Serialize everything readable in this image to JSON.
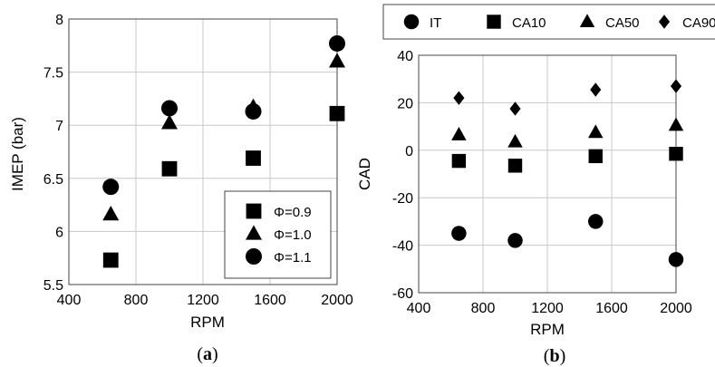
{
  "chart_data": [
    {
      "type": "scatter",
      "xlabel": "RPM",
      "ylabel": "IMEP (bar)",
      "xlim": [
        400,
        2000
      ],
      "ylim": [
        5.5,
        8
      ],
      "xticks": [
        "400",
        "800",
        "1200",
        "1600",
        "2000"
      ],
      "yticks": [
        "5.5",
        "6",
        "6.5",
        "7",
        "7.5",
        "8"
      ],
      "grid": true,
      "legend_position": "bottom-right",
      "caption": [
        "(",
        "a",
        ")"
      ],
      "series": [
        {
          "name": "Φ=0.9",
          "marker": "square",
          "x": [
            650,
            1000,
            1500,
            2000
          ],
          "y": [
            5.73,
            6.59,
            6.69,
            7.11
          ]
        },
        {
          "name": "Φ=1.0",
          "marker": "triangle",
          "x": [
            650,
            1000,
            1500,
            2000
          ],
          "y": [
            6.16,
            7.02,
            7.17,
            7.6
          ]
        },
        {
          "name": "Φ=1.1",
          "marker": "circle",
          "x": [
            650,
            1000,
            1500,
            2000
          ],
          "y": [
            6.42,
            7.16,
            7.13,
            7.77
          ]
        }
      ]
    },
    {
      "type": "scatter",
      "xlabel": "RPM",
      "ylabel": "CAD",
      "xlim": [
        400,
        2000
      ],
      "ylim": [
        -60,
        40
      ],
      "xticks": [
        "400",
        "800",
        "1200",
        "1600",
        "2000"
      ],
      "yticks": [
        "-60",
        "-40",
        "-20",
        "0",
        "20",
        "40"
      ],
      "grid": true,
      "legend_position": "top",
      "caption": [
        "(",
        "b",
        ")"
      ],
      "series": [
        {
          "name": "IT",
          "marker": "circle",
          "x": [
            650,
            1000,
            1500,
            2000
          ],
          "y": [
            -35,
            -38,
            -30,
            -46
          ]
        },
        {
          "name": "CA10",
          "marker": "square",
          "x": [
            650,
            1000,
            1500,
            2000
          ],
          "y": [
            -4.5,
            -6.5,
            -2.5,
            -1.5
          ]
        },
        {
          "name": "CA50",
          "marker": "triangle",
          "x": [
            650,
            1000,
            1500,
            2000
          ],
          "y": [
            6.5,
            3.5,
            7.5,
            10.5
          ]
        },
        {
          "name": "CA90",
          "marker": "diamond",
          "x": [
            650,
            1000,
            1500,
            2000
          ],
          "y": [
            22,
            17.5,
            25.5,
            27
          ]
        }
      ]
    }
  ]
}
